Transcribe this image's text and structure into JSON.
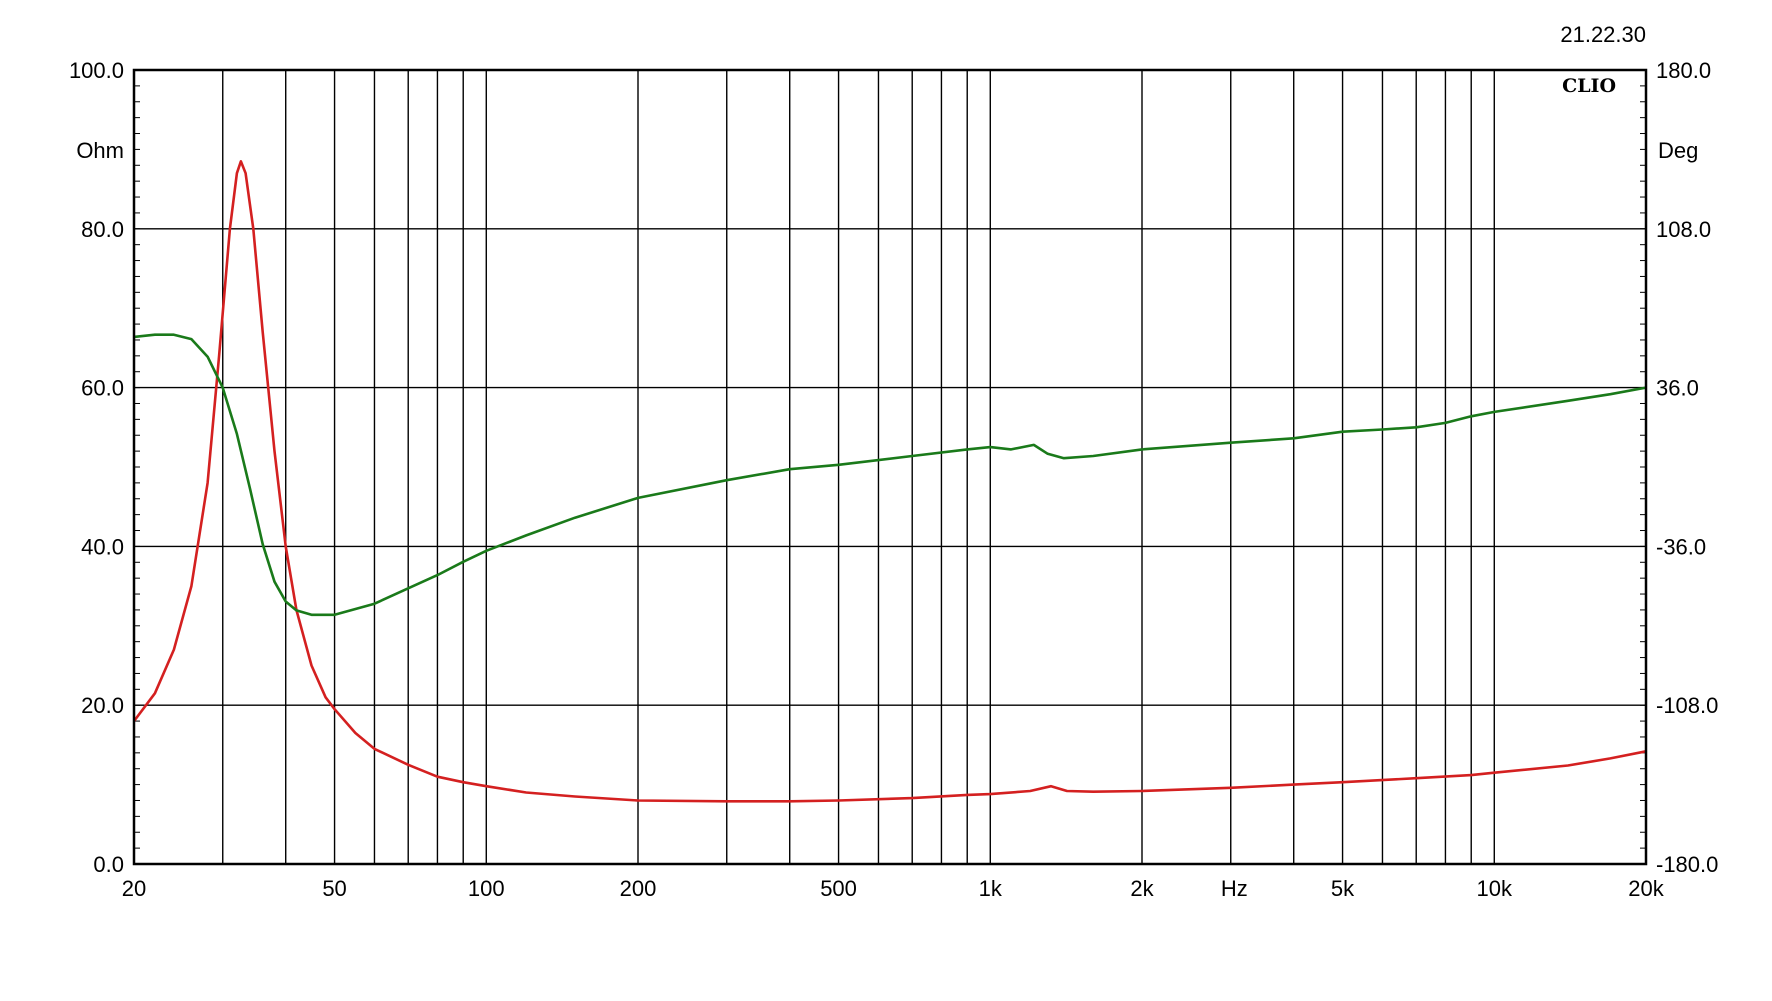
{
  "timestamp": "21.22.30",
  "logo": "CLIO",
  "chart_data": {
    "type": "line",
    "x_scale": "log",
    "xlim": [
      20,
      20000
    ],
    "x_unit": "Hz",
    "x_ticks": [
      {
        "value": 20,
        "label": "20"
      },
      {
        "value": 50,
        "label": "50"
      },
      {
        "value": 100,
        "label": "100"
      },
      {
        "value": 200,
        "label": "200"
      },
      {
        "value": 500,
        "label": "500"
      },
      {
        "value": 1000,
        "label": "1k"
      },
      {
        "value": 2000,
        "label": "2k"
      },
      {
        "value": 5000,
        "label": "5k"
      },
      {
        "value": 10000,
        "label": "10k"
      },
      {
        "value": 20000,
        "label": "20k"
      }
    ],
    "x_gridlines": [
      20,
      30,
      40,
      50,
      60,
      70,
      80,
      90,
      100,
      200,
      300,
      400,
      500,
      600,
      700,
      800,
      900,
      1000,
      2000,
      3000,
      4000,
      5000,
      6000,
      7000,
      8000,
      9000,
      10000,
      20000
    ],
    "y_left": {
      "unit": "Ohm",
      "range": [
        0,
        100
      ],
      "ticks": [
        {
          "value": 0,
          "label": "0.0"
        },
        {
          "value": 20,
          "label": "20.0"
        },
        {
          "value": 40,
          "label": "40.0"
        },
        {
          "value": 60,
          "label": "60.0"
        },
        {
          "value": 80,
          "label": "80.0"
        },
        {
          "value": 100,
          "label": "100.0"
        }
      ]
    },
    "y_right": {
      "unit": "Deg",
      "range": [
        -180,
        180
      ],
      "ticks": [
        {
          "value": -180,
          "label": "-180.0"
        },
        {
          "value": -108,
          "label": "-108.0"
        },
        {
          "value": -36,
          "label": "-36.0"
        },
        {
          "value": 36,
          "label": "36.0"
        },
        {
          "value": 108,
          "label": "108.0"
        },
        {
          "value": 180,
          "label": "180.0"
        }
      ]
    },
    "grid": true,
    "series": [
      {
        "axis": "left",
        "color": "#d42020",
        "points": [
          [
            20,
            18
          ],
          [
            22,
            21.5
          ],
          [
            24,
            27
          ],
          [
            26,
            35
          ],
          [
            28,
            48
          ],
          [
            29.5,
            64
          ],
          [
            31,
            80
          ],
          [
            32,
            87
          ],
          [
            32.6,
            88.5
          ],
          [
            33.3,
            87
          ],
          [
            34.5,
            80
          ],
          [
            36,
            67
          ],
          [
            38,
            52
          ],
          [
            40,
            40
          ],
          [
            42,
            32
          ],
          [
            45,
            25
          ],
          [
            48,
            21
          ],
          [
            50,
            19.5
          ],
          [
            55,
            16.5
          ],
          [
            60,
            14.5
          ],
          [
            70,
            12.5
          ],
          [
            80,
            11
          ],
          [
            90,
            10.3
          ],
          [
            100,
            9.8
          ],
          [
            120,
            9.0
          ],
          [
            150,
            8.5
          ],
          [
            200,
            8.0
          ],
          [
            300,
            7.9
          ],
          [
            400,
            7.9
          ],
          [
            500,
            8.0
          ],
          [
            700,
            8.3
          ],
          [
            900,
            8.7
          ],
          [
            1000,
            8.8
          ],
          [
            1200,
            9.2
          ],
          [
            1320,
            9.8
          ],
          [
            1420,
            9.2
          ],
          [
            1600,
            9.1
          ],
          [
            2000,
            9.2
          ],
          [
            3000,
            9.6
          ],
          [
            4000,
            10.0
          ],
          [
            5000,
            10.3
          ],
          [
            7000,
            10.8
          ],
          [
            9000,
            11.2
          ],
          [
            10000,
            11.5
          ],
          [
            14000,
            12.4
          ],
          [
            17000,
            13.3
          ],
          [
            20000,
            14.2
          ]
        ]
      },
      {
        "axis": "right",
        "color": "#1a7a1a",
        "points": [
          [
            20,
            59
          ],
          [
            22,
            60
          ],
          [
            24,
            60
          ],
          [
            26,
            58
          ],
          [
            28,
            50
          ],
          [
            30,
            36
          ],
          [
            32,
            15
          ],
          [
            34,
            -10
          ],
          [
            36,
            -35
          ],
          [
            38,
            -52
          ],
          [
            40,
            -61
          ],
          [
            42,
            -65
          ],
          [
            45,
            -67
          ],
          [
            50,
            -67
          ],
          [
            60,
            -62
          ],
          [
            70,
            -55
          ],
          [
            80,
            -49
          ],
          [
            90,
            -43
          ],
          [
            100,
            -38
          ],
          [
            120,
            -31
          ],
          [
            150,
            -23
          ],
          [
            200,
            -14
          ],
          [
            300,
            -6
          ],
          [
            400,
            -1
          ],
          [
            500,
            1
          ],
          [
            700,
            5
          ],
          [
            900,
            8
          ],
          [
            1000,
            9
          ],
          [
            1100,
            8
          ],
          [
            1220,
            10
          ],
          [
            1300,
            6
          ],
          [
            1400,
            4
          ],
          [
            1600,
            5
          ],
          [
            2000,
            8
          ],
          [
            3000,
            11
          ],
          [
            4000,
            13
          ],
          [
            5000,
            16
          ],
          [
            6000,
            17
          ],
          [
            7000,
            18
          ],
          [
            8000,
            20
          ],
          [
            9000,
            23
          ],
          [
            10000,
            25
          ],
          [
            14000,
            30
          ],
          [
            17000,
            33
          ],
          [
            20000,
            36
          ]
        ]
      }
    ]
  }
}
